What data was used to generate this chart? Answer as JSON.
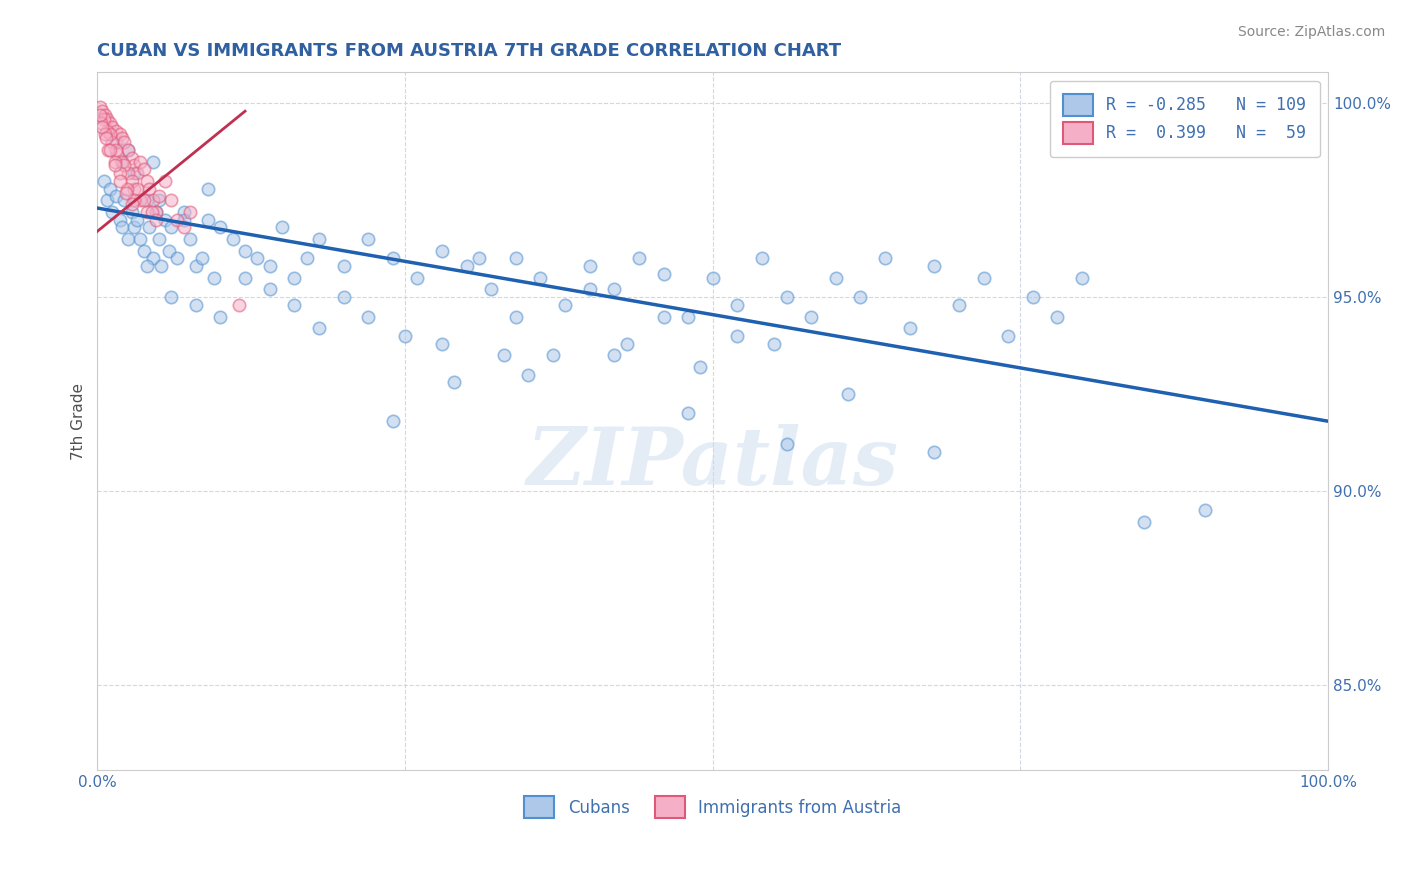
{
  "title": "CUBAN VS IMMIGRANTS FROM AUSTRIA 7TH GRADE CORRELATION CHART",
  "source_text": "Source: ZipAtlas.com",
  "ylabel": "7th Grade",
  "legend_labels": [
    "Cubans",
    "Immigrants from Austria"
  ],
  "legend_r": [
    -0.285,
    0.399
  ],
  "legend_n": [
    109,
    59
  ],
  "blue_color": "#adc8e8",
  "pink_color": "#f5b0c8",
  "blue_edge_color": "#5090d0",
  "pink_edge_color": "#e05878",
  "blue_line_color": "#2060b0",
  "pink_line_color": "#c03050",
  "title_color": "#3060a0",
  "label_color": "#505050",
  "tick_color": "#4070b0",
  "source_color": "#888888",
  "background_color": "#ffffff",
  "grid_color": "#d0d8e8",
  "xlim": [
    0.0,
    1.0
  ],
  "ylim": [
    0.828,
    1.008
  ],
  "yticks": [
    0.85,
    0.9,
    0.95,
    1.0
  ],
  "ytick_labels": [
    "85.0%",
    "90.0%",
    "95.0%",
    "100.0%"
  ],
  "xticks": [
    0.0,
    0.25,
    0.5,
    0.75,
    1.0
  ],
  "xtick_labels": [
    "0.0%",
    "",
    "",
    "",
    "100.0%"
  ],
  "blue_trendline_x": [
    0.0,
    1.0
  ],
  "blue_trendline_y": [
    0.973,
    0.918
  ],
  "pink_trendline_x": [
    0.0,
    0.12
  ],
  "pink_trendline_y": [
    0.967,
    0.998
  ],
  "blue_scatter_x": [
    0.005,
    0.008,
    0.01,
    0.012,
    0.015,
    0.018,
    0.02,
    0.022,
    0.025,
    0.028,
    0.03,
    0.032,
    0.035,
    0.038,
    0.04,
    0.042,
    0.045,
    0.048,
    0.05,
    0.052,
    0.055,
    0.058,
    0.06,
    0.065,
    0.07,
    0.075,
    0.08,
    0.085,
    0.09,
    0.095,
    0.1,
    0.11,
    0.12,
    0.13,
    0.14,
    0.15,
    0.16,
    0.17,
    0.18,
    0.2,
    0.22,
    0.24,
    0.26,
    0.28,
    0.3,
    0.32,
    0.34,
    0.36,
    0.38,
    0.4,
    0.42,
    0.44,
    0.46,
    0.48,
    0.5,
    0.52,
    0.54,
    0.56,
    0.58,
    0.6,
    0.62,
    0.64,
    0.66,
    0.68,
    0.7,
    0.72,
    0.74,
    0.76,
    0.78,
    0.8,
    0.04,
    0.06,
    0.08,
    0.1,
    0.12,
    0.14,
    0.16,
    0.18,
    0.2,
    0.22,
    0.25,
    0.28,
    0.31,
    0.34,
    0.37,
    0.4,
    0.43,
    0.46,
    0.49,
    0.52,
    0.02,
    0.03,
    0.05,
    0.07,
    0.09,
    0.015,
    0.025,
    0.045,
    0.85,
    0.9,
    0.35,
    0.42,
    0.48,
    0.55,
    0.61,
    0.24,
    0.29,
    0.33,
    0.56,
    0.68
  ],
  "blue_scatter_y": [
    0.98,
    0.975,
    0.978,
    0.972,
    0.976,
    0.97,
    0.968,
    0.975,
    0.965,
    0.972,
    0.968,
    0.97,
    0.965,
    0.962,
    0.975,
    0.968,
    0.96,
    0.972,
    0.965,
    0.958,
    0.97,
    0.962,
    0.968,
    0.96,
    0.972,
    0.965,
    0.958,
    0.96,
    0.97,
    0.955,
    0.968,
    0.965,
    0.962,
    0.96,
    0.958,
    0.968,
    0.955,
    0.96,
    0.965,
    0.958,
    0.965,
    0.96,
    0.955,
    0.962,
    0.958,
    0.952,
    0.96,
    0.955,
    0.948,
    0.958,
    0.952,
    0.96,
    0.956,
    0.945,
    0.955,
    0.948,
    0.96,
    0.95,
    0.945,
    0.955,
    0.95,
    0.96,
    0.942,
    0.958,
    0.948,
    0.955,
    0.94,
    0.95,
    0.945,
    0.955,
    0.958,
    0.95,
    0.948,
    0.945,
    0.955,
    0.952,
    0.948,
    0.942,
    0.95,
    0.945,
    0.94,
    0.938,
    0.96,
    0.945,
    0.935,
    0.952,
    0.938,
    0.945,
    0.932,
    0.94,
    0.985,
    0.982,
    0.975,
    0.97,
    0.978,
    0.99,
    0.988,
    0.985,
    0.892,
    0.895,
    0.93,
    0.935,
    0.92,
    0.938,
    0.925,
    0.918,
    0.928,
    0.935,
    0.912,
    0.91
  ],
  "pink_scatter_x": [
    0.002,
    0.004,
    0.006,
    0.008,
    0.01,
    0.012,
    0.015,
    0.018,
    0.02,
    0.022,
    0.025,
    0.028,
    0.03,
    0.032,
    0.035,
    0.038,
    0.04,
    0.042,
    0.045,
    0.048,
    0.05,
    0.055,
    0.06,
    0.065,
    0.07,
    0.075,
    0.005,
    0.008,
    0.012,
    0.016,
    0.02,
    0.025,
    0.03,
    0.035,
    0.04,
    0.01,
    0.015,
    0.022,
    0.028,
    0.032,
    0.038,
    0.044,
    0.048,
    0.003,
    0.006,
    0.009,
    0.014,
    0.018,
    0.024,
    0.03,
    0.002,
    0.004,
    0.007,
    0.01,
    0.014,
    0.018,
    0.023,
    0.028,
    0.115
  ],
  "pink_scatter_y": [
    0.999,
    0.998,
    0.997,
    0.996,
    0.995,
    0.994,
    0.993,
    0.992,
    0.991,
    0.99,
    0.988,
    0.986,
    0.984,
    0.982,
    0.985,
    0.983,
    0.98,
    0.978,
    0.975,
    0.972,
    0.976,
    0.98,
    0.975,
    0.97,
    0.968,
    0.972,
    0.996,
    0.993,
    0.99,
    0.987,
    0.985,
    0.982,
    0.978,
    0.975,
    0.972,
    0.992,
    0.988,
    0.984,
    0.98,
    0.978,
    0.975,
    0.972,
    0.97,
    0.995,
    0.992,
    0.988,
    0.985,
    0.982,
    0.978,
    0.975,
    0.997,
    0.994,
    0.991,
    0.988,
    0.984,
    0.98,
    0.977,
    0.974,
    0.948
  ],
  "watermark_text": "ZIPatlas",
  "marker_size": 80,
  "marker_alpha": 0.55,
  "marker_linewidth": 1.2
}
